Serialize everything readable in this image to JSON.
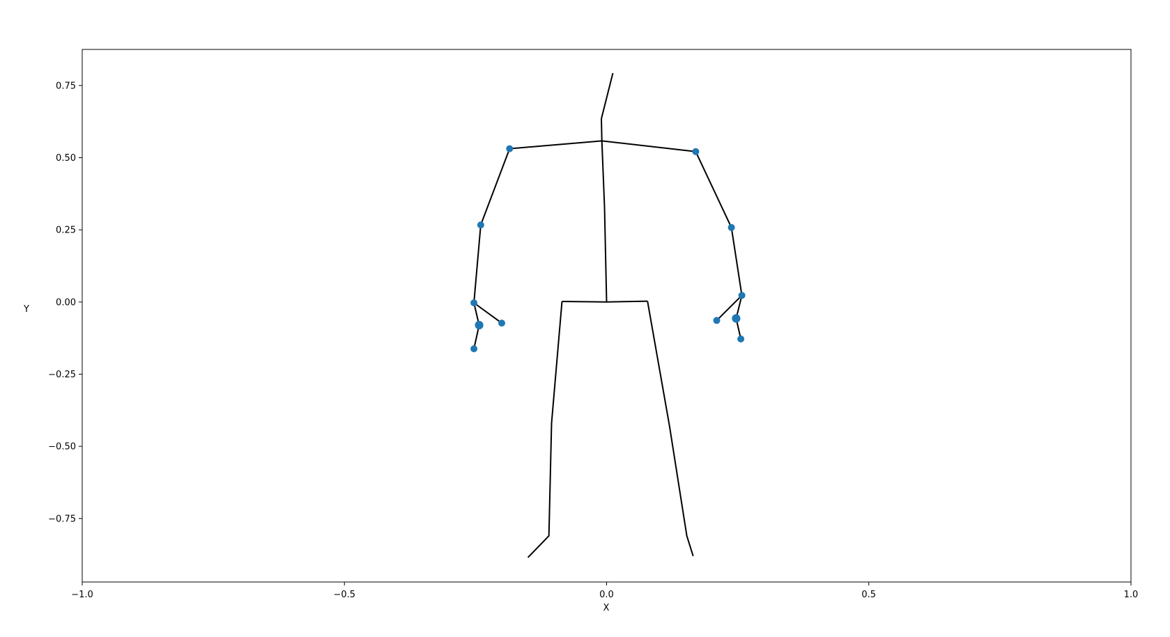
{
  "chart_data": {
    "type": "line",
    "title": "",
    "xlabel": "X",
    "ylabel": "Y",
    "xlim": [
      -1.0,
      1.0
    ],
    "ylim": [
      -0.97,
      0.875
    ],
    "grid": false,
    "x_ticks": [
      -1.0,
      -0.5,
      0.0,
      0.5,
      1.0
    ],
    "x_tick_labels": [
      "−1.0",
      "−0.5",
      "0.0",
      "0.5",
      "1.0"
    ],
    "y_ticks": [
      0.75,
      0.5,
      0.25,
      0.0,
      -0.25,
      -0.5,
      -0.75
    ],
    "y_tick_labels": [
      "0.75",
      "0.50",
      "0.25",
      "0.00",
      "−0.25",
      "−0.50",
      "−0.75"
    ],
    "colors": {
      "bone": "#000000",
      "joint": "#1f77b4"
    },
    "bones": [
      {
        "name": "head",
        "points": [
          [
            -0.01,
            0.635
          ],
          [
            0.012,
            0.793
          ]
        ]
      },
      {
        "name": "neck",
        "points": [
          [
            -0.009,
            0.558
          ],
          [
            -0.01,
            0.635
          ]
        ]
      },
      {
        "name": "spine",
        "points": [
          [
            0.0,
            0.0
          ],
          [
            -0.004,
            0.33
          ],
          [
            -0.009,
            0.558
          ]
        ]
      },
      {
        "name": "left-shoulder",
        "points": [
          [
            -0.009,
            0.558
          ],
          [
            -0.185,
            0.531
          ]
        ]
      },
      {
        "name": "left-upper-arm",
        "points": [
          [
            -0.185,
            0.531
          ],
          [
            -0.24,
            0.267
          ]
        ]
      },
      {
        "name": "left-forearm",
        "points": [
          [
            -0.24,
            0.267
          ],
          [
            -0.253,
            -0.003
          ]
        ]
      },
      {
        "name": "left-hand-a",
        "points": [
          [
            -0.253,
            -0.003
          ],
          [
            -0.2,
            -0.073
          ]
        ]
      },
      {
        "name": "left-hand-b",
        "points": [
          [
            -0.253,
            -0.003
          ],
          [
            -0.243,
            -0.08
          ],
          [
            -0.253,
            -0.162
          ]
        ]
      },
      {
        "name": "right-shoulder",
        "points": [
          [
            -0.009,
            0.558
          ],
          [
            0.17,
            0.521
          ]
        ]
      },
      {
        "name": "right-upper-arm",
        "points": [
          [
            0.17,
            0.521
          ],
          [
            0.238,
            0.258
          ]
        ]
      },
      {
        "name": "right-forearm",
        "points": [
          [
            0.238,
            0.258
          ],
          [
            0.258,
            0.023
          ]
        ]
      },
      {
        "name": "right-hand-a",
        "points": [
          [
            0.258,
            0.023
          ],
          [
            0.21,
            -0.064
          ]
        ]
      },
      {
        "name": "right-hand-b",
        "points": [
          [
            0.258,
            0.023
          ],
          [
            0.247,
            -0.057
          ],
          [
            0.256,
            -0.128
          ]
        ]
      },
      {
        "name": "pelvis",
        "points": [
          [
            -0.085,
            0.002
          ],
          [
            0.0,
            0.0
          ],
          [
            0.078,
            0.003
          ]
        ]
      },
      {
        "name": "left-leg",
        "points": [
          [
            -0.085,
            0.002
          ],
          [
            -0.105,
            -0.42
          ],
          [
            -0.11,
            -0.81
          ],
          [
            -0.15,
            -0.885
          ]
        ]
      },
      {
        "name": "right-leg",
        "points": [
          [
            0.078,
            0.003
          ],
          [
            0.12,
            -0.43
          ],
          [
            0.153,
            -0.81
          ],
          [
            0.165,
            -0.88
          ]
        ]
      }
    ],
    "joints": [
      {
        "name": "left-shoulder",
        "x": -0.185,
        "y": 0.531,
        "size": 1
      },
      {
        "name": "left-elbow",
        "x": -0.24,
        "y": 0.267,
        "size": 1
      },
      {
        "name": "left-wrist",
        "x": -0.253,
        "y": -0.003,
        "size": 1
      },
      {
        "name": "left-hand-tip-a",
        "x": -0.2,
        "y": -0.073,
        "size": 1
      },
      {
        "name": "left-palm",
        "x": -0.243,
        "y": -0.08,
        "size": 1.5
      },
      {
        "name": "left-hand-tip-b",
        "x": -0.253,
        "y": -0.162,
        "size": 1
      },
      {
        "name": "right-shoulder",
        "x": 0.17,
        "y": 0.521,
        "size": 1
      },
      {
        "name": "right-elbow",
        "x": 0.238,
        "y": 0.258,
        "size": 1
      },
      {
        "name": "right-wrist",
        "x": 0.258,
        "y": 0.023,
        "size": 1
      },
      {
        "name": "right-hand-tip-a",
        "x": 0.21,
        "y": -0.064,
        "size": 1
      },
      {
        "name": "right-palm",
        "x": 0.247,
        "y": -0.057,
        "size": 1.5
      },
      {
        "name": "right-hand-tip-b",
        "x": 0.256,
        "y": -0.128,
        "size": 1
      }
    ]
  }
}
